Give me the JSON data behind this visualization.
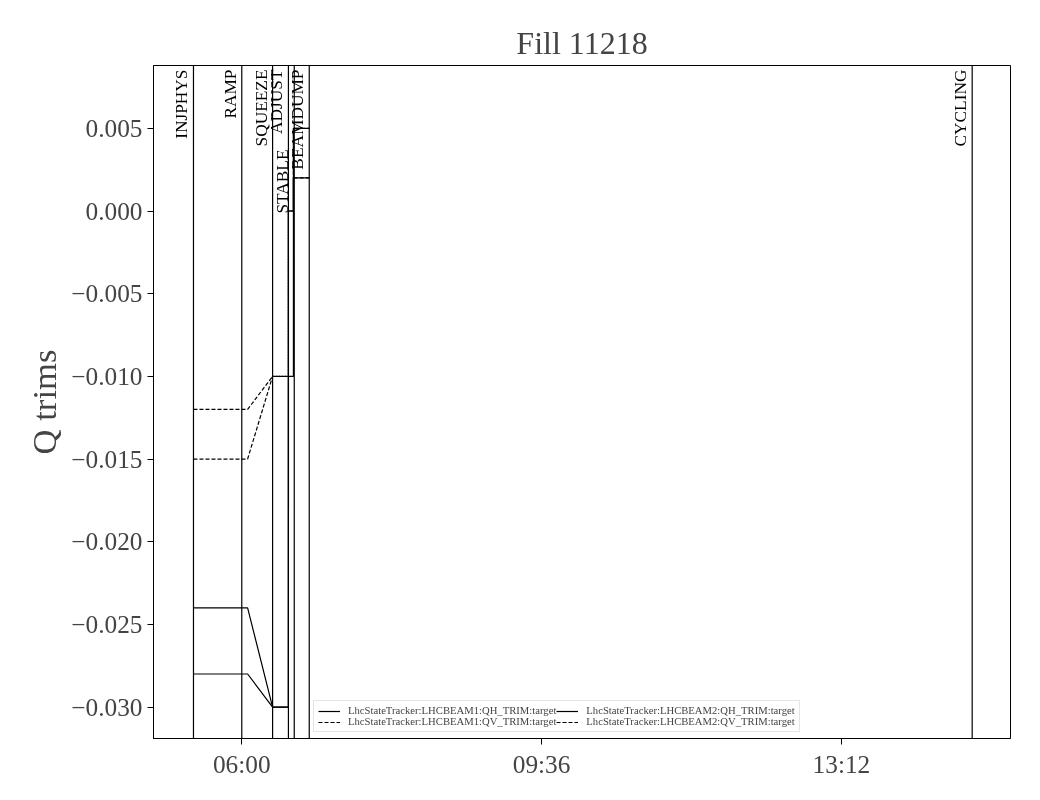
{
  "chart_data": {
    "type": "line",
    "title": "Fill 11218",
    "ylabel": "Q trims",
    "xlim": [
      4.94,
      15.23
    ],
    "ylim": [
      -0.0319,
      0.0088
    ],
    "xticks": [
      {
        "value": 6,
        "label": "06:00"
      },
      {
        "value": 9.6,
        "label": "09:36"
      },
      {
        "value": 13.2,
        "label": "13:12"
      }
    ],
    "yticks": [
      {
        "value": -0.03,
        "label": "−0.030"
      },
      {
        "value": -0.025,
        "label": "−0.025"
      },
      {
        "value": -0.02,
        "label": "−0.020"
      },
      {
        "value": -0.015,
        "label": "−0.015"
      },
      {
        "value": -0.01,
        "label": "−0.010"
      },
      {
        "value": -0.005,
        "label": "−0.005"
      },
      {
        "value": 0,
        "label": "0.000"
      },
      {
        "value": 0.005,
        "label": "0.005"
      }
    ],
    "series": [
      {
        "name": "LhcStateTracker:LHCBEAM1:QH_TRIM:target",
        "color": "#000000",
        "line_style": "solid",
        "x": [
          5.42,
          6.07,
          6.37,
          6.56,
          6.56,
          6.62,
          6.62,
          6.81
        ],
        "values": [
          -0.024,
          -0.024,
          -0.03,
          -0.03,
          0.0,
          0.0,
          0.005,
          0.005
        ]
      },
      {
        "name": "LhcStateTracker:LHCBEAM1:QV_TRIM:target",
        "color": "#000000",
        "line_style": "dashed",
        "x": [
          5.42,
          6.07,
          6.37,
          6.56,
          6.56,
          6.62,
          6.62,
          6.81
        ],
        "values": [
          -0.012,
          -0.012,
          -0.01,
          -0.01,
          0.0,
          0.0,
          0.005,
          0.005
        ]
      },
      {
        "name": "LhcStateTracker:LHCBEAM2:QH_TRIM:target",
        "color": "#000000",
        "line_style": "solid",
        "x": [
          5.42,
          6.07,
          6.37,
          6.56,
          6.56,
          6.62,
          6.62,
          6.81
        ],
        "values": [
          -0.028,
          -0.028,
          -0.03,
          -0.03,
          -0.01,
          -0.01,
          0.002,
          0.002
        ]
      },
      {
        "name": "LhcStateTracker:LHCBEAM2:QV_TRIM:target",
        "color": "#000000",
        "line_style": "dashed",
        "x": [
          5.42,
          6.07,
          6.37,
          6.56,
          6.56,
          6.62,
          6.62,
          6.81
        ],
        "values": [
          -0.015,
          -0.015,
          -0.01,
          -0.01,
          0.0,
          0.0,
          0.002,
          0.002
        ]
      }
    ],
    "ref_lines": [
      {
        "axis": "x",
        "value": 5.42,
        "label": "INJPHYS",
        "color": "#000000"
      },
      {
        "axis": "x",
        "value": 6.0,
        "label": "RAMP",
        "color": "#000000"
      },
      {
        "axis": "x",
        "value": 6.37,
        "label": "SQUEEZE",
        "color": "#000000"
      },
      {
        "axis": "x",
        "value": 6.56,
        "label": "ADJUST",
        "color": "#000000"
      },
      {
        "axis": "x",
        "value": 6.63,
        "label": "STABLE",
        "color": "#000000"
      },
      {
        "axis": "x",
        "value": 6.81,
        "label": "BEAMDUMP",
        "color": "#000000"
      },
      {
        "axis": "x",
        "value": 14.77,
        "label": "CYCLING",
        "color": "#000000"
      }
    ],
    "legend": "bottom",
    "grid": false
  }
}
